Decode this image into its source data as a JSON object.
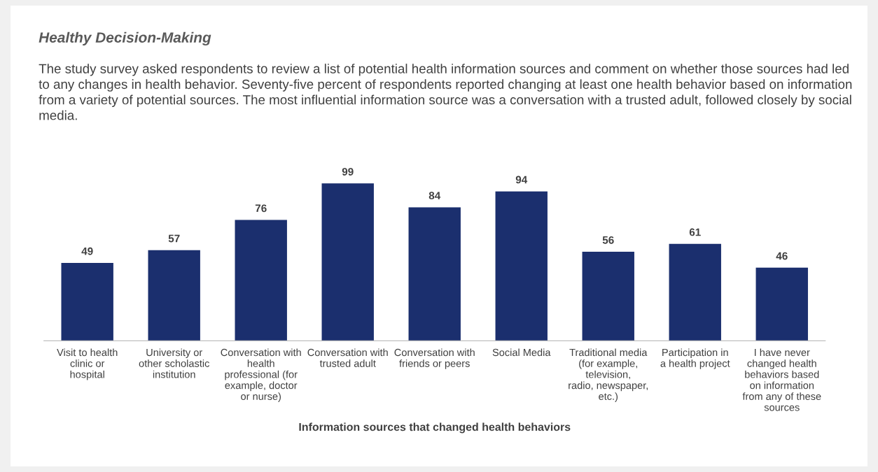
{
  "chart_data": {
    "type": "bar",
    "title": "Healthy Decision-Making",
    "subtitle": "The study survey asked respondents to review a list of potential health information sources and comment on whether those sources had led to any changes in health behavior. Seventy-five percent of respondents reported changing at least one health behavior based on information from a variety of potential sources. The most influential information source was a conversation with a trusted adult, followed closely by social media.",
    "xlabel": "Information sources that changed health behaviors",
    "categories": [
      "Visit to health clinic or hospital",
      "University or other scholastic institution",
      "Conversation with health professional (for example, doctor or nurse)",
      "Conversation with trusted adult",
      "Conversation with friends or peers",
      "Social Media",
      "Traditional media (for example, television, radio, newspaper, etc.)",
      "Participation in a health project",
      "I have never changed health behaviors based on information from any of these sources"
    ],
    "values": [
      49,
      57,
      76,
      99,
      84,
      94,
      56,
      61,
      46
    ],
    "color": "#1b2f6e",
    "data_labels": true,
    "grid": false,
    "legend": false
  }
}
